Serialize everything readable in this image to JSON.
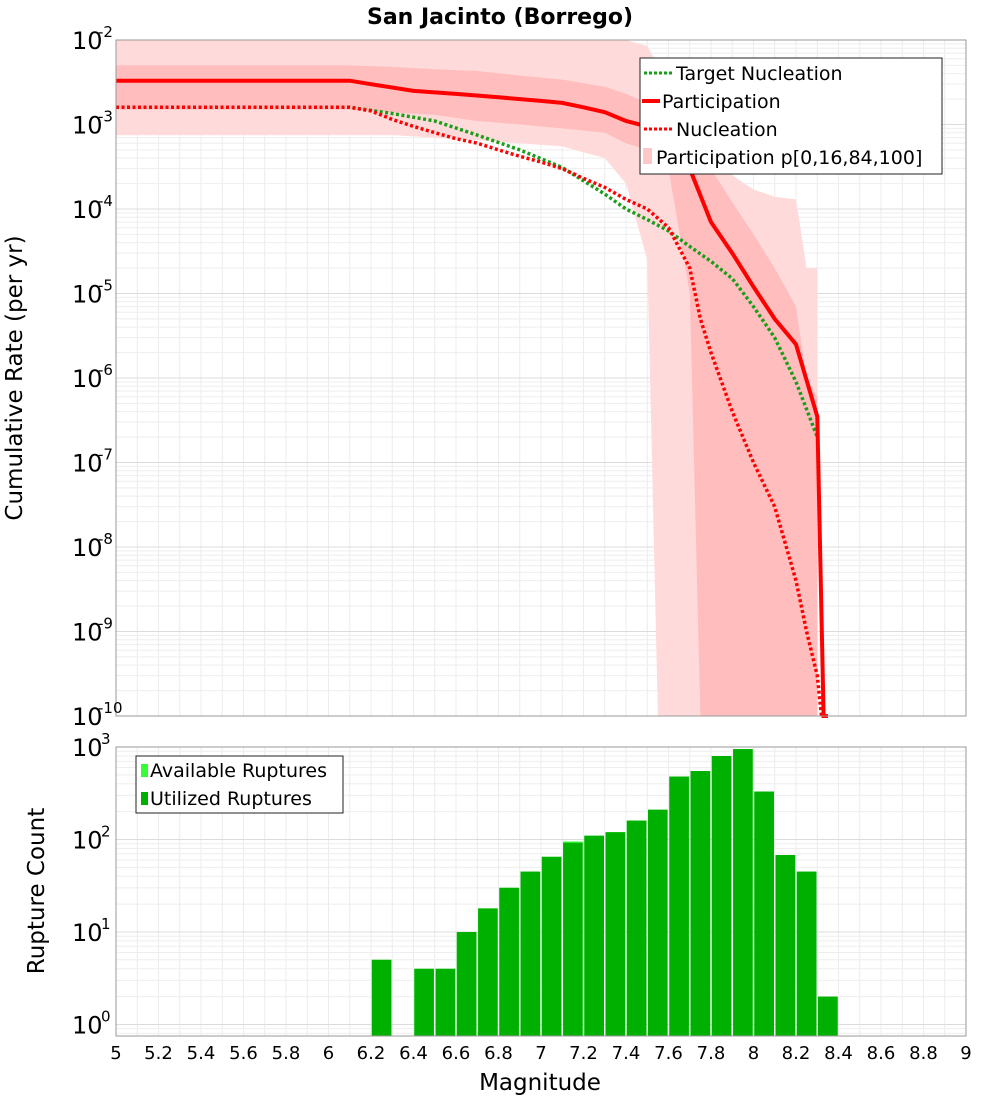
{
  "chart_data": [
    {
      "type": "line",
      "title": "San Jacinto (Borrego)",
      "xlabel": "",
      "ylabel": "Cumulative Rate (per yr)",
      "xlim": [
        5,
        9
      ],
      "ylim": [
        1e-10,
        0.01
      ],
      "yscale": "log",
      "grid": true,
      "legend_position": "top-right",
      "ytick_labels": [
        {
          "value": 1e-10,
          "base": "10",
          "exp": "-10"
        },
        {
          "value": 1e-09,
          "base": "10",
          "exp": "-9"
        },
        {
          "value": 1e-08,
          "base": "10",
          "exp": "-8"
        },
        {
          "value": 1e-07,
          "base": "10",
          "exp": "-7"
        },
        {
          "value": 1e-06,
          "base": "10",
          "exp": "-6"
        },
        {
          "value": 1e-05,
          "base": "10",
          "exp": "-5"
        },
        {
          "value": 0.0001,
          "base": "10",
          "exp": "-4"
        },
        {
          "value": 0.001,
          "base": "10",
          "exp": "-3"
        },
        {
          "value": 0.01,
          "base": "10",
          "exp": "-2"
        }
      ],
      "series": [
        {
          "name": "Target Nucleation",
          "style": "dotted",
          "color": "#1a9e1a",
          "x": [
            5.0,
            6.1,
            6.3,
            6.5,
            6.7,
            6.9,
            7.1,
            7.3,
            7.4,
            7.5,
            7.6,
            7.7,
            7.8,
            7.9,
            8.0,
            8.1,
            8.2,
            8.3
          ],
          "y": [
            0.0016,
            0.0016,
            0.00135,
            0.0011,
            0.00075,
            0.0005,
            0.00031,
            0.00015,
            0.0001,
            7.5e-05,
            5.5e-05,
            3.6e-05,
            2.4e-05,
            1.5e-05,
            7e-06,
            3e-06,
            9e-07,
            2e-07
          ]
        },
        {
          "name": "Participation",
          "style": "solid",
          "color": "#ff0000",
          "x": [
            5.0,
            6.1,
            6.2,
            6.4,
            6.6,
            6.8,
            7.0,
            7.1,
            7.2,
            7.3,
            7.4,
            7.5,
            7.6,
            7.7,
            7.8,
            7.9,
            8.0,
            8.1,
            8.2,
            8.3,
            8.33,
            8.35
          ],
          "y": [
            0.0033,
            0.0033,
            0.003,
            0.0025,
            0.0023,
            0.0021,
            0.0019,
            0.0018,
            0.0016,
            0.0014,
            0.0011,
            0.00095,
            0.0007,
            0.0003,
            7e-05,
            3e-05,
            1.2e-05,
            5e-06,
            2.5e-06,
            3.5e-07,
            1e-10,
            1e-10
          ]
        },
        {
          "name": "Nucleation",
          "style": "dotted",
          "color": "#ff0000",
          "x": [
            5.0,
            6.1,
            6.2,
            6.3,
            6.4,
            6.5,
            6.6,
            6.7,
            6.8,
            6.9,
            7.0,
            7.1,
            7.2,
            7.3,
            7.4,
            7.5,
            7.6,
            7.7,
            7.75,
            7.8,
            7.9,
            8.0,
            8.1,
            8.2,
            8.25,
            8.3,
            8.32
          ],
          "y": [
            0.0016,
            0.0016,
            0.00145,
            0.00115,
            0.00095,
            0.0008,
            0.00068,
            0.0006,
            0.0005,
            0.00042,
            0.00036,
            0.0003,
            0.00023,
            0.00018,
            0.00013,
            0.0001,
            6e-05,
            2e-05,
            5e-06,
            2e-06,
            4e-07,
            1e-07,
            3e-08,
            4e-09,
            1e-09,
            3e-10,
            1e-10
          ]
        }
      ],
      "bands": [
        {
          "name": "Participation p[0,16,84,100]",
          "outer_color": "#ffdada",
          "inner_color": "#ffbdbd",
          "x": [
            5.0,
            6.1,
            6.3,
            6.5,
            6.7,
            6.9,
            7.1,
            7.3,
            7.4,
            7.5,
            7.55,
            7.6,
            7.7,
            7.75,
            7.8,
            7.9,
            8.0,
            8.1,
            8.2,
            8.25,
            8.3
          ],
          "p100": [
            0.01,
            0.01,
            0.01,
            0.01,
            0.01,
            0.01,
            0.01,
            0.01,
            0.01,
            0.0085,
            0.005,
            0.0025,
            0.0012,
            0.0009,
            0.0006,
            0.00025,
            0.00017,
            0.00014,
            0.00013,
            2e-05,
            2e-05
          ],
          "p84": [
            0.005,
            0.005,
            0.0048,
            0.0045,
            0.0043,
            0.0038,
            0.0034,
            0.0028,
            0.0023,
            0.0018,
            0.0016,
            0.0014,
            0.0011,
            0.00085,
            0.0003,
            0.00012,
            5e-05,
            2e-05,
            7e-06,
            1e-06,
            6e-07
          ],
          "p16": [
            0.0015,
            0.0015,
            0.0014,
            0.0013,
            0.0011,
            0.001,
            0.0009,
            0.0008,
            0.0006,
            0.0005,
            0.00045,
            0.0003,
            1e-05,
            1e-10,
            1e-10,
            1e-10,
            1e-10,
            1e-10,
            1e-10,
            1e-10,
            1e-10
          ],
          "p0": [
            0.00075,
            0.00075,
            0.00075,
            0.0007,
            0.00065,
            0.0006,
            0.00055,
            0.0004,
            0.0002,
            2.5e-05,
            1e-10,
            1e-10,
            1e-10,
            1e-10,
            1e-10,
            1e-10,
            1e-10,
            1e-10,
            1e-10,
            1e-10,
            1e-10
          ]
        }
      ]
    },
    {
      "type": "bar",
      "title": "",
      "xlabel": "Magnitude",
      "ylabel": "Rupture Count",
      "xlim": [
        5,
        9
      ],
      "ylim": [
        0.75,
        1000
      ],
      "yscale": "log",
      "grid": true,
      "legend_position": "top-left",
      "xtick_labels": [
        "5",
        "5.2",
        "5.4",
        "5.6",
        "5.8",
        "6",
        "6.2",
        "6.4",
        "6.6",
        "6.8",
        "7",
        "7.2",
        "7.4",
        "7.6",
        "7.8",
        "8",
        "8.2",
        "8.4",
        "8.6",
        "8.8",
        "9"
      ],
      "ytick_labels": [
        {
          "value": 1,
          "base": "10",
          "exp": "0"
        },
        {
          "value": 10,
          "base": "10",
          "exp": "1"
        },
        {
          "value": 100,
          "base": "10",
          "exp": "2"
        },
        {
          "value": 1000,
          "base": "10",
          "exp": "3"
        }
      ],
      "bar_width": 0.1,
      "x": [
        6.25,
        6.45,
        6.55,
        6.65,
        6.75,
        6.85,
        6.95,
        7.05,
        7.15,
        7.25,
        7.35,
        7.45,
        7.55,
        7.65,
        7.75,
        7.85,
        7.95,
        8.05,
        8.15,
        8.25,
        8.35
      ],
      "series": [
        {
          "name": "Available Ruptures",
          "color": "#33ff33",
          "values": [
            5,
            4,
            4,
            10,
            18,
            30,
            45,
            65,
            95,
            110,
            120,
            160,
            210,
            480,
            550,
            800,
            950,
            330,
            68,
            45,
            2
          ]
        },
        {
          "name": "Utilized Ruptures",
          "color": "#00b000",
          "values": [
            5,
            4,
            4,
            10,
            18,
            30,
            45,
            65,
            92,
            110,
            120,
            160,
            210,
            480,
            550,
            800,
            950,
            330,
            68,
            45,
            2
          ]
        }
      ]
    }
  ]
}
